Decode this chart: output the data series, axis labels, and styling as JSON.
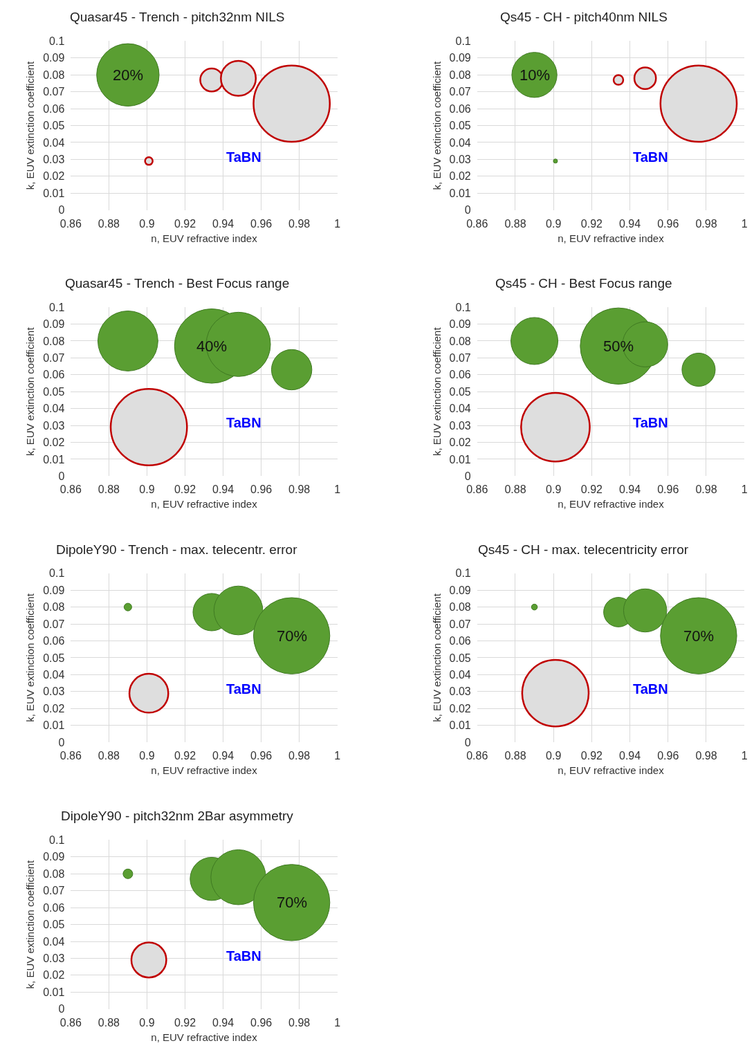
{
  "chart_data": [
    {
      "type": "bubble",
      "title": "Quasar45 - Trench - pitch32nm NILS",
      "xlabel": "n, EUV refractive index",
      "ylabel": "k, EUV extinction coefficient",
      "x": [
        0.89,
        0.901,
        0.934,
        0.948,
        0.976
      ],
      "values": [
        0.08,
        0.029,
        0.077,
        0.078,
        0.063
      ],
      "sizes": [
        0.67,
        0.01,
        0.09,
        0.21,
        1
      ],
      "colors": [
        "#5a9e32",
        "#dedede",
        "#dedede",
        "#dedede",
        "#dedede"
      ],
      "xlim": [
        0.86,
        1
      ],
      "ylim": [
        0,
        0.1
      ],
      "xticks": [
        0.86,
        0.88,
        0.9,
        0.92,
        0.94,
        0.96,
        0.98,
        1
      ],
      "yticks": [
        0,
        0.01,
        0.02,
        0.03,
        0.04,
        0.05,
        0.06,
        0.07,
        0.08,
        0.09,
        0.1
      ],
      "grid": true,
      "annotations": [
        {
          "text": "20%",
          "x": 0.89,
          "y": 0.08
        },
        "TaBN"
      ]
    },
    {
      "type": "bubble",
      "title": "Qs45 - CH - pitch40nm NILS",
      "xlabel": "n, EUV refractive index",
      "ylabel": "k, EUV extinction coefficient",
      "x": [
        0.89,
        0.901,
        0.934,
        0.948,
        0.976
      ],
      "values": [
        0.08,
        0.029,
        0.077,
        0.078,
        0.063
      ],
      "sizes": [
        0.35,
        0.003,
        0.016,
        0.08,
        1
      ],
      "colors": [
        "#5a9e32",
        "#5a9e32",
        "#dedede",
        "#dedede",
        "#dedede"
      ],
      "xlim": [
        0.86,
        1
      ],
      "ylim": [
        0,
        0.1
      ],
      "xticks": [
        0.86,
        0.88,
        0.9,
        0.92,
        0.94,
        0.96,
        0.98,
        1
      ],
      "yticks": [
        0,
        0.01,
        0.02,
        0.03,
        0.04,
        0.05,
        0.06,
        0.07,
        0.08,
        0.09,
        0.1
      ],
      "grid": true,
      "annotations": [
        {
          "text": "10%",
          "x": 0.89,
          "y": 0.08
        },
        "TaBN"
      ]
    },
    {
      "type": "bubble",
      "title": "Quasar45 - Trench - Best Focus range",
      "xlabel": "n, EUV refractive index",
      "ylabel": "k, EUV extinction coefficient",
      "x": [
        0.89,
        0.901,
        0.934,
        0.948,
        0.976
      ],
      "values": [
        0.08,
        0.029,
        0.077,
        0.078,
        0.063
      ],
      "sizes": [
        0.62,
        1,
        0.95,
        0.71,
        0.28
      ],
      "colors": [
        "#5a9e32",
        "#dedede",
        "#5a9e32",
        "#5a9e32",
        "#5a9e32"
      ],
      "xlim": [
        0.86,
        1
      ],
      "ylim": [
        0,
        0.1
      ],
      "xticks": [
        0.86,
        0.88,
        0.9,
        0.92,
        0.94,
        0.96,
        0.98,
        1
      ],
      "yticks": [
        0,
        0.01,
        0.02,
        0.03,
        0.04,
        0.05,
        0.06,
        0.07,
        0.08,
        0.09,
        0.1
      ],
      "grid": true,
      "annotations": [
        {
          "text": "40%",
          "x": 0.934,
          "y": 0.077
        },
        "TaBN"
      ]
    },
    {
      "type": "bubble",
      "title": "Qs45 - CH - Best Focus range",
      "xlabel": "n, EUV refractive index",
      "ylabel": "k, EUV extinction coefficient",
      "x": [
        0.89,
        0.901,
        0.934,
        0.948,
        0.976
      ],
      "values": [
        0.08,
        0.029,
        0.077,
        0.078,
        0.063
      ],
      "sizes": [
        0.38,
        0.81,
        1,
        0.35,
        0.19
      ],
      "colors": [
        "#5a9e32",
        "#dedede",
        "#5a9e32",
        "#5a9e32",
        "#5a9e32"
      ],
      "xlim": [
        0.86,
        1
      ],
      "ylim": [
        0,
        0.1
      ],
      "xticks": [
        0.86,
        0.88,
        0.9,
        0.92,
        0.94,
        0.96,
        0.98,
        1
      ],
      "yticks": [
        0,
        0.01,
        0.02,
        0.03,
        0.04,
        0.05,
        0.06,
        0.07,
        0.08,
        0.09,
        0.1
      ],
      "grid": true,
      "annotations": [
        {
          "text": "50%",
          "x": 0.934,
          "y": 0.077
        },
        "TaBN"
      ]
    },
    {
      "type": "bubble",
      "title": "DipoleY90 - Trench - max. telecentr. error",
      "xlabel": "n, EUV refractive index",
      "ylabel": "k, EUV extinction coefficient",
      "x": [
        0.89,
        0.901,
        0.934,
        0.948,
        0.976
      ],
      "values": [
        0.08,
        0.029,
        0.077,
        0.078,
        0.063
      ],
      "sizes": [
        0.01,
        0.26,
        0.24,
        0.41,
        1
      ],
      "colors": [
        "#5a9e32",
        "#dedede",
        "#5a9e32",
        "#5a9e32",
        "#5a9e32"
      ],
      "xlim": [
        0.86,
        1
      ],
      "ylim": [
        0,
        0.1
      ],
      "xticks": [
        0.86,
        0.88,
        0.9,
        0.92,
        0.94,
        0.96,
        0.98,
        1
      ],
      "yticks": [
        0,
        0.01,
        0.02,
        0.03,
        0.04,
        0.05,
        0.06,
        0.07,
        0.08,
        0.09,
        0.1
      ],
      "grid": true,
      "annotations": [
        {
          "text": "70%",
          "x": 0.976,
          "y": 0.063
        },
        "TaBN"
      ]
    },
    {
      "type": "bubble",
      "title": "Qs45 - CH - max. telecentricity error",
      "xlabel": "n, EUV refractive index",
      "ylabel": "k, EUV extinction coefficient",
      "x": [
        0.89,
        0.901,
        0.934,
        0.948,
        0.976
      ],
      "values": [
        0.08,
        0.029,
        0.077,
        0.078,
        0.063
      ],
      "sizes": [
        0.006,
        0.76,
        0.15,
        0.32,
        1
      ],
      "colors": [
        "#5a9e32",
        "#dedede",
        "#5a9e32",
        "#5a9e32",
        "#5a9e32"
      ],
      "xlim": [
        0.86,
        1
      ],
      "ylim": [
        0,
        0.1
      ],
      "xticks": [
        0.86,
        0.88,
        0.9,
        0.92,
        0.94,
        0.96,
        0.98,
        1
      ],
      "yticks": [
        0,
        0.01,
        0.02,
        0.03,
        0.04,
        0.05,
        0.06,
        0.07,
        0.08,
        0.09,
        0.1
      ],
      "grid": true,
      "annotations": [
        {
          "text": "70%",
          "x": 0.976,
          "y": 0.063
        },
        "TaBN"
      ]
    },
    {
      "type": "bubble",
      "title": "DipoleY90 - pitch32nm 2Bar asymmetry",
      "xlabel": "n, EUV refractive index",
      "ylabel": "k, EUV extinction coefficient",
      "x": [
        0.89,
        0.901,
        0.934,
        0.948,
        0.976
      ],
      "values": [
        0.08,
        0.029,
        0.077,
        0.078,
        0.063
      ],
      "sizes": [
        0.016,
        0.21,
        0.32,
        0.52,
        1
      ],
      "colors": [
        "#5a9e32",
        "#dedede",
        "#5a9e32",
        "#5a9e32",
        "#5a9e32"
      ],
      "xlim": [
        0.86,
        1
      ],
      "ylim": [
        0,
        0.1
      ],
      "xticks": [
        0.86,
        0.88,
        0.9,
        0.92,
        0.94,
        0.96,
        0.98,
        1
      ],
      "yticks": [
        0,
        0.01,
        0.02,
        0.03,
        0.04,
        0.05,
        0.06,
        0.07,
        0.08,
        0.09,
        0.1
      ],
      "grid": true,
      "annotations": [
        {
          "text": "70%",
          "x": 0.976,
          "y": 0.063
        },
        "TaBN"
      ]
    }
  ]
}
